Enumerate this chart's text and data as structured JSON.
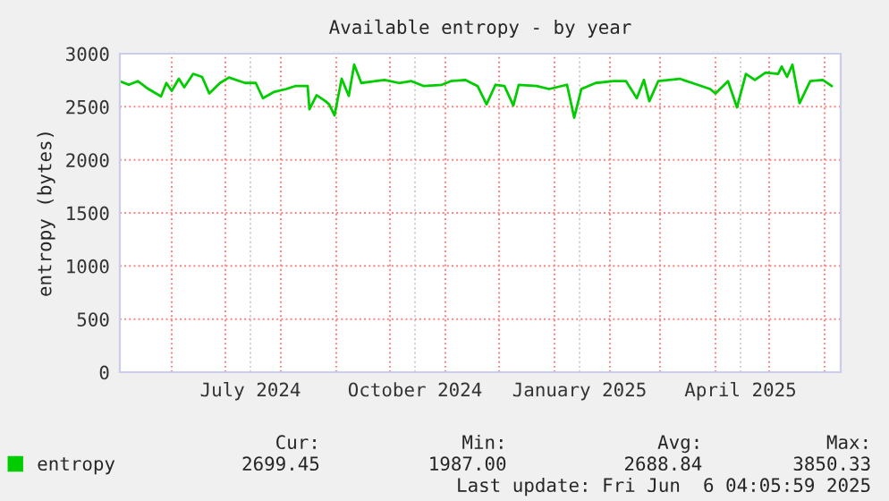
{
  "chart_data": {
    "type": "line",
    "title": "Available entropy - by year",
    "ylabel": "entropy (bytes)",
    "x": [
      "2024-05-03",
      "2024-05-08",
      "2024-05-13",
      "2024-05-19",
      "2024-05-26",
      "2024-05-29",
      "2024-06-01",
      "2024-06-05",
      "2024-06-08",
      "2024-06-13",
      "2024-06-18",
      "2024-06-22",
      "2024-06-28",
      "2024-07-03",
      "2024-07-12",
      "2024-07-18",
      "2024-07-22",
      "2024-07-28",
      "2024-08-04",
      "2024-08-09",
      "2024-08-16",
      "2024-08-17",
      "2024-08-21",
      "2024-08-26",
      "2024-08-28",
      "2024-08-31",
      "2024-09-04",
      "2024-09-08",
      "2024-09-11",
      "2024-09-15",
      "2024-09-23",
      "2024-09-28",
      "2024-10-06",
      "2024-10-13",
      "2024-10-20",
      "2024-10-30",
      "2024-11-04",
      "2024-11-12",
      "2024-11-19",
      "2024-11-24",
      "2024-11-29",
      "2024-12-04",
      "2024-12-09",
      "2024-12-12",
      "2024-12-22",
      "2024-12-29",
      "2025-01-08",
      "2025-01-12",
      "2025-01-16",
      "2025-01-24",
      "2025-02-03",
      "2025-02-10",
      "2025-02-16",
      "2025-02-20",
      "2025-02-23",
      "2025-02-28",
      "2025-03-12",
      "2025-03-22",
      "2025-03-29",
      "2025-04-01",
      "2025-04-08",
      "2025-04-13",
      "2025-04-18",
      "2025-04-23",
      "2025-04-29",
      "2025-05-06",
      "2025-05-08",
      "2025-05-11",
      "2025-05-14",
      "2025-05-18",
      "2025-05-21",
      "2025-05-24",
      "2025-05-31",
      "2025-06-05"
    ],
    "series": [
      {
        "name": "entropy",
        "color": "#00cc00",
        "values": [
          2741,
          2707,
          2741,
          2667,
          2598,
          2724,
          2650,
          2764,
          2684,
          2810,
          2781,
          2626,
          2724,
          2776,
          2724,
          2724,
          2581,
          2638,
          2667,
          2695,
          2695,
          2477,
          2609,
          2552,
          2523,
          2419,
          2764,
          2603,
          2897,
          2724,
          2741,
          2753,
          2724,
          2741,
          2695,
          2707,
          2741,
          2753,
          2695,
          2523,
          2707,
          2695,
          2512,
          2707,
          2695,
          2667,
          2707,
          2397,
          2667,
          2724,
          2741,
          2741,
          2581,
          2753,
          2552,
          2741,
          2764,
          2707,
          2667,
          2626,
          2741,
          2494,
          2810,
          2753,
          2822,
          2810,
          2879,
          2781,
          2897,
          2534,
          2638,
          2741,
          2753,
          2695
        ]
      }
    ],
    "xlim": [
      "2024-05-03",
      "2025-06-10"
    ],
    "xticks": [
      {
        "value": "2024-06-01",
        "label": null
      },
      {
        "value": "2024-07-01",
        "label": null
      },
      {
        "value": "2024-07-15",
        "label": "July 2024"
      },
      {
        "value": "2024-08-01",
        "label": null
      },
      {
        "value": "2024-09-01",
        "label": null
      },
      {
        "value": "2024-10-01",
        "label": null
      },
      {
        "value": "2024-10-15",
        "label": "October 2024"
      },
      {
        "value": "2024-11-01",
        "label": null
      },
      {
        "value": "2024-12-01",
        "label": null
      },
      {
        "value": "2025-01-01",
        "label": null
      },
      {
        "value": "2025-01-15",
        "label": "January 2025"
      },
      {
        "value": "2025-02-01",
        "label": null
      },
      {
        "value": "2025-03-01",
        "label": null
      },
      {
        "value": "2025-04-01",
        "label": null
      },
      {
        "value": "2025-04-15",
        "label": "April 2025"
      },
      {
        "value": "2025-05-01",
        "label": null
      },
      {
        "value": "2025-06-01",
        "label": null
      }
    ],
    "ylim": [
      0,
      3000
    ],
    "yticks": [
      0,
      500,
      1000,
      1500,
      2000,
      2500,
      3000
    ],
    "grid": true,
    "legend": "bottom",
    "line_style": "solid",
    "marker": "none",
    "annotations": [
      "Cur:",
      "Min:",
      "Avg:",
      "Max:",
      "2699.45",
      "1987.00",
      "2688.84",
      "3850.33",
      "Last update: Fri Jun  6 04:05:59 2025"
    ]
  }
}
